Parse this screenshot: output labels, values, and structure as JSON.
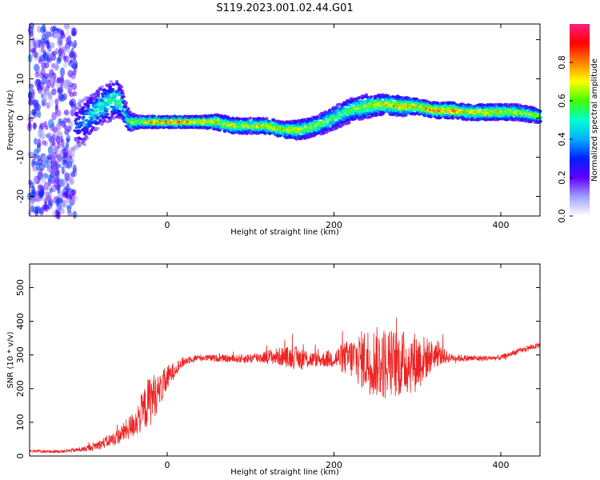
{
  "title": "S119.2023.001.02.44.G01",
  "colorbar": {
    "label": "Normalized spectral amplitude",
    "ticks": [
      "0.0",
      "0.2",
      "0.4",
      "0.6",
      "0.8"
    ],
    "tick_values": [
      0.0,
      0.2,
      0.4,
      0.6,
      0.8
    ],
    "range": [
      0,
      1
    ],
    "colormap": [
      "#ffffff",
      "#a0a0ff",
      "#6000ff",
      "#0020ff",
      "#00b0ff",
      "#00ffd0",
      "#40ff00",
      "#ffff00",
      "#ff8000",
      "#ff0000",
      "#ff2080"
    ]
  },
  "chart_data": [
    {
      "type": "heatmap",
      "xlabel": "Height of straight line (km)",
      "ylabel": "Frequency (Hz)",
      "xlim": [
        -165,
        447
      ],
      "ylim": [
        -25,
        24
      ],
      "x_ticks": [
        0,
        200,
        400
      ],
      "y_ticks": [
        -20,
        -10,
        0,
        10,
        20
      ],
      "x_tick_labels": [
        "0",
        "200",
        "400"
      ],
      "y_tick_labels": [
        "-20",
        "-10",
        "0",
        "10",
        "20"
      ],
      "ridge": {
        "x": [
          -110,
          -100,
          -90,
          -80,
          -70,
          -60,
          -55,
          -50,
          -45,
          -40,
          -30,
          -20,
          -10,
          0,
          20,
          40,
          60,
          80,
          100,
          120,
          140,
          160,
          180,
          200,
          220,
          240,
          260,
          280,
          300,
          320,
          340,
          360,
          380,
          400,
          420,
          447
        ],
        "y": [
          -2,
          -1,
          1,
          3,
          4,
          5,
          4,
          1,
          -1,
          -1,
          -1,
          -1,
          -1,
          -1,
          -1,
          -1,
          -1,
          -2,
          -2,
          -2,
          -3,
          -3,
          -2,
          0,
          2,
          3,
          3.5,
          3,
          3,
          2,
          2,
          1.5,
          1.5,
          1.5,
          1.5,
          0.5
        ],
        "amp": [
          0.35,
          0.45,
          0.55,
          0.6,
          0.6,
          0.65,
          0.7,
          0.6,
          0.7,
          0.75,
          0.85,
          0.95,
          0.95,
          0.95,
          0.95,
          0.9,
          0.85,
          0.85,
          0.8,
          0.85,
          0.85,
          0.8,
          0.75,
          0.7,
          0.7,
          0.8,
          0.85,
          0.9,
          0.9,
          0.95,
          0.95,
          0.85,
          0.9,
          0.9,
          0.8,
          0.75
        ],
        "width": [
          6,
          6,
          5,
          5,
          5,
          5,
          4,
          3,
          2.5,
          2,
          1.5,
          1.5,
          1.5,
          1.5,
          1.5,
          1.5,
          2,
          2,
          2,
          2,
          2,
          2.5,
          2.5,
          3,
          3,
          3,
          2.5,
          2.5,
          2,
          2,
          2,
          2,
          2,
          2,
          2,
          2
        ]
      },
      "noise_region_x": [
        -165,
        -110
      ]
    },
    {
      "type": "line",
      "xlabel": "Height of straight line (km)",
      "ylabel": "SNR (10 * v/v)",
      "xlim": [
        -165,
        447
      ],
      "ylim": [
        0,
        570
      ],
      "x_ticks": [
        0,
        200,
        400
      ],
      "y_ticks": [
        0,
        100,
        200,
        300,
        400,
        500
      ],
      "x_tick_labels": [
        "0",
        "200",
        "400"
      ],
      "y_tick_labels": [
        "0",
        "100",
        "200",
        "300",
        "400",
        "500"
      ],
      "color": "#ee2222",
      "series": [
        {
          "x": [
            -165,
            -140,
            -120,
            -100,
            -80,
            -60,
            -40,
            -30,
            -20,
            -10,
            0,
            10,
            20,
            30,
            40,
            60,
            80,
            100,
            120,
            140,
            160,
            180,
            200,
            220,
            240,
            260,
            280,
            300,
            320,
            340,
            360,
            380,
            400,
            420,
            447
          ],
          "y": [
            15,
            13,
            15,
            20,
            35,
            55,
            95,
            130,
            170,
            190,
            230,
            260,
            280,
            290,
            292,
            290,
            288,
            290,
            295,
            295,
            290,
            285,
            290,
            290,
            285,
            275,
            275,
            280,
            300,
            292,
            290,
            290,
            292,
            310,
            330
          ],
          "noise": [
            4,
            4,
            5,
            8,
            15,
            22,
            40,
            60,
            80,
            50,
            40,
            20,
            15,
            10,
            10,
            10,
            12,
            15,
            20,
            30,
            35,
            20,
            30,
            60,
            100,
            110,
            100,
            90,
            40,
            12,
            10,
            8,
            8,
            8,
            8
          ]
        }
      ]
    }
  ]
}
